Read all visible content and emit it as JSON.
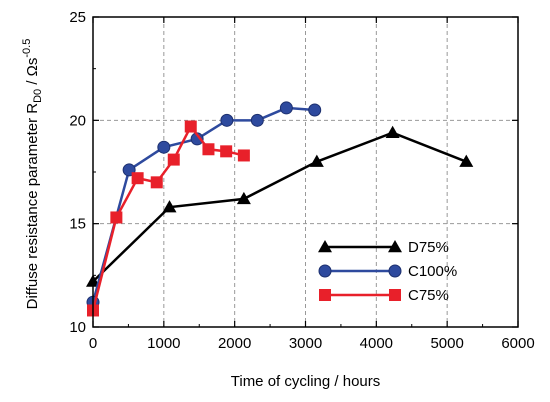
{
  "chart_data": {
    "type": "line",
    "xlabel": "Time of cycling  /  hours",
    "ylabel_main": "Diffuse resistance parameter R",
    "ylabel_sub": "D0",
    "ylabel_unit": " / Ωs",
    "ylabel_sup": "-0.5",
    "xlim": [
      0,
      6000
    ],
    "ylim": [
      10,
      25
    ],
    "xticks": [
      0,
      1000,
      2000,
      3000,
      4000,
      5000,
      6000
    ],
    "yticks": [
      10,
      15,
      20,
      25
    ],
    "grid": true,
    "legend_position": "bottom-right",
    "series": [
      {
        "name": "D75%",
        "color": "#000000",
        "marker": "triangle",
        "points": [
          [
            0,
            12.2
          ],
          [
            1080,
            15.8
          ],
          [
            2130,
            16.2
          ],
          [
            3160,
            18.0
          ],
          [
            4230,
            19.4
          ],
          [
            5270,
            18.0
          ]
        ]
      },
      {
        "name": "C100%",
        "color": "#2e4a9e",
        "marker": "circle",
        "points": [
          [
            0,
            11.2
          ],
          [
            510,
            17.6
          ],
          [
            1000,
            18.7
          ],
          [
            1470,
            19.1
          ],
          [
            1890,
            20.0
          ],
          [
            2320,
            20.0
          ],
          [
            2730,
            20.6
          ],
          [
            3130,
            20.5
          ]
        ]
      },
      {
        "name": "C75%",
        "color": "#e8202a",
        "marker": "square",
        "points": [
          [
            0,
            10.8
          ],
          [
            330,
            15.3
          ],
          [
            630,
            17.2
          ],
          [
            900,
            17.0
          ],
          [
            1140,
            18.1
          ],
          [
            1380,
            19.7
          ],
          [
            1630,
            18.6
          ],
          [
            1880,
            18.5
          ],
          [
            2130,
            18.3
          ]
        ]
      }
    ]
  }
}
